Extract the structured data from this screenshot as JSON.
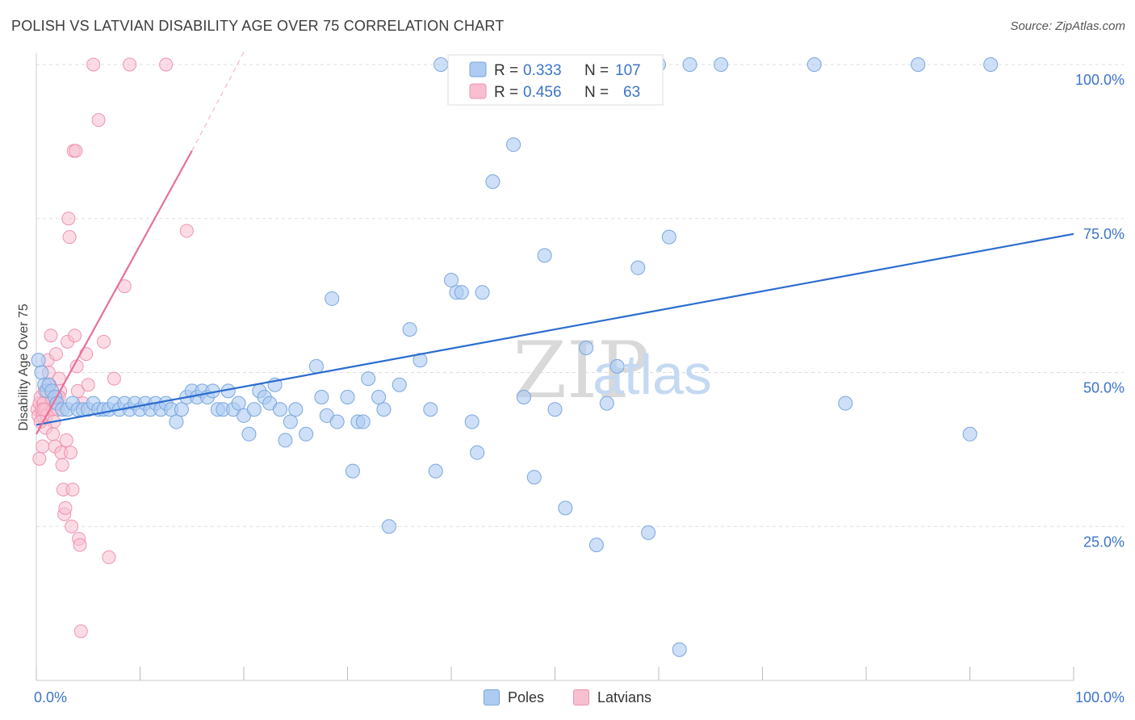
{
  "header": {
    "title": "POLISH VS LATVIAN DISABILITY AGE OVER 75 CORRELATION CHART",
    "source": "Source: ZipAtlas.com"
  },
  "watermark": {
    "zip": "ZIP",
    "atlas": "atlas"
  },
  "legend_box": {
    "poles": {
      "r_label": "R =",
      "r_value": "0.333",
      "n_label": "N =",
      "n_value": "107"
    },
    "latvians": {
      "r_label": "R =",
      "r_value": "0.456",
      "n_label": "N =",
      "n_value": "63"
    }
  },
  "legend_bottom": {
    "poles": "Poles",
    "latvians": "Latvians"
  },
  "colors": {
    "poles_fill": "#aecbf2",
    "poles_stroke": "#7aa6df",
    "poles_line": "#2a6ccf",
    "latvians_fill": "#f7bfd0",
    "latvians_stroke": "#ee93b1",
    "latvians_line": "#e8709a",
    "axis_text_blue": "#3c74c8",
    "grid": "#dddddd"
  },
  "chart_data": {
    "type": "scatter",
    "title": "POLISH VS LATVIAN DISABILITY AGE OVER 75 CORRELATION CHART",
    "xlabel": "",
    "ylabel": "Disability Age Over 75",
    "xlim": [
      0,
      100
    ],
    "ylim": [
      0,
      100
    ],
    "x_tick_labels": [
      "0.0%",
      "100.0%"
    ],
    "y_ticks": [
      25,
      50,
      75,
      100
    ],
    "y_tick_labels": [
      "25.0%",
      "50.0%",
      "75.0%",
      "100.0%"
    ],
    "grid": true,
    "series": [
      {
        "name": "Poles",
        "r": 0.333,
        "n": 107,
        "trend": {
          "x": [
            0,
            100
          ],
          "y": [
            41.5,
            72.5
          ]
        },
        "points": [
          [
            0.2,
            52
          ],
          [
            0.5,
            50
          ],
          [
            0.8,
            48
          ],
          [
            1.0,
            47
          ],
          [
            1.2,
            48
          ],
          [
            1.5,
            47
          ],
          [
            1.8,
            46
          ],
          [
            2.0,
            45
          ],
          [
            2.5,
            44
          ],
          [
            3.0,
            44
          ],
          [
            3.5,
            45
          ],
          [
            4.0,
            44
          ],
          [
            4.5,
            44
          ],
          [
            5.0,
            44
          ],
          [
            5.5,
            45
          ],
          [
            6.0,
            44
          ],
          [
            6.5,
            44
          ],
          [
            7.0,
            44
          ],
          [
            7.5,
            45
          ],
          [
            8.0,
            44
          ],
          [
            8.5,
            45
          ],
          [
            9.0,
            44
          ],
          [
            9.5,
            45
          ],
          [
            10.0,
            44
          ],
          [
            10.5,
            45
          ],
          [
            11.0,
            44
          ],
          [
            11.5,
            45
          ],
          [
            12.0,
            44
          ],
          [
            12.5,
            45
          ],
          [
            13.0,
            44
          ],
          [
            13.5,
            42
          ],
          [
            14.0,
            44
          ],
          [
            14.5,
            46
          ],
          [
            15.0,
            47
          ],
          [
            15.5,
            46
          ],
          [
            16.0,
            47
          ],
          [
            16.5,
            46
          ],
          [
            17.0,
            47
          ],
          [
            17.5,
            44
          ],
          [
            18.0,
            44
          ],
          [
            18.5,
            47
          ],
          [
            19.0,
            44
          ],
          [
            19.5,
            45
          ],
          [
            20.0,
            43
          ],
          [
            20.5,
            40
          ],
          [
            21.0,
            44
          ],
          [
            21.5,
            47
          ],
          [
            22.0,
            46
          ],
          [
            22.5,
            45
          ],
          [
            23.0,
            48
          ],
          [
            23.5,
            44
          ],
          [
            24.0,
            39
          ],
          [
            24.5,
            42
          ],
          [
            25.0,
            44
          ],
          [
            26.0,
            40
          ],
          [
            27.0,
            51
          ],
          [
            27.5,
            46
          ],
          [
            28.0,
            43
          ],
          [
            28.5,
            62
          ],
          [
            29.0,
            42
          ],
          [
            30.0,
            46
          ],
          [
            30.5,
            34
          ],
          [
            31.0,
            42
          ],
          [
            31.5,
            42
          ],
          [
            32.0,
            49
          ],
          [
            33.0,
            46
          ],
          [
            33.5,
            44
          ],
          [
            34.0,
            25
          ],
          [
            35.0,
            48
          ],
          [
            36.0,
            57
          ],
          [
            37.0,
            52
          ],
          [
            38.0,
            44
          ],
          [
            38.5,
            34
          ],
          [
            39.0,
            100
          ],
          [
            40.0,
            65
          ],
          [
            40.5,
            63
          ],
          [
            41.0,
            63
          ],
          [
            41.5,
            100
          ],
          [
            42.0,
            42
          ],
          [
            42.5,
            37
          ],
          [
            43.0,
            63
          ],
          [
            44.0,
            81
          ],
          [
            45.0,
            100
          ],
          [
            46.0,
            87
          ],
          [
            47.0,
            46
          ],
          [
            48.0,
            33
          ],
          [
            49.0,
            69
          ],
          [
            50.0,
            44
          ],
          [
            51.0,
            28
          ],
          [
            52.0,
            100
          ],
          [
            53.0,
            54
          ],
          [
            54.0,
            22
          ],
          [
            55.0,
            45
          ],
          [
            56.0,
            51
          ],
          [
            57.0,
            100
          ],
          [
            58.0,
            67
          ],
          [
            59.0,
            24
          ],
          [
            60.0,
            100
          ],
          [
            61.0,
            72
          ],
          [
            62.0,
            5
          ],
          [
            63.0,
            100
          ],
          [
            66.0,
            100
          ],
          [
            75.0,
            100
          ],
          [
            78.0,
            45
          ],
          [
            85.0,
            100
          ],
          [
            90.0,
            40
          ],
          [
            92.0,
            100
          ]
        ]
      },
      {
        "name": "Latvians",
        "r": 0.456,
        "n": 63,
        "trend": {
          "x": [
            0,
            15
          ],
          "y": [
            40,
            86
          ]
        },
        "trend_dashed": {
          "x": [
            15,
            20
          ],
          "y": [
            86,
            102
          ]
        },
        "points": [
          [
            0.1,
            44
          ],
          [
            0.2,
            43
          ],
          [
            0.3,
            45
          ],
          [
            0.4,
            46
          ],
          [
            0.5,
            44
          ],
          [
            0.6,
            43
          ],
          [
            0.7,
            45
          ],
          [
            0.8,
            47
          ],
          [
            0.9,
            44
          ],
          [
            1.0,
            43
          ],
          [
            1.1,
            52
          ],
          [
            1.2,
            50
          ],
          [
            1.3,
            48
          ],
          [
            1.4,
            56
          ],
          [
            1.5,
            46
          ],
          [
            1.6,
            44
          ],
          [
            1.7,
            42
          ],
          [
            1.8,
            38
          ],
          [
            1.9,
            53
          ],
          [
            2.0,
            46
          ],
          [
            2.1,
            44
          ],
          [
            2.2,
            49
          ],
          [
            2.3,
            47
          ],
          [
            2.4,
            37
          ],
          [
            2.5,
            35
          ],
          [
            2.6,
            31
          ],
          [
            2.7,
            27
          ],
          [
            2.8,
            28
          ],
          [
            2.9,
            39
          ],
          [
            3.0,
            55
          ],
          [
            3.1,
            75
          ],
          [
            3.2,
            72
          ],
          [
            3.3,
            37
          ],
          [
            3.4,
            25
          ],
          [
            3.5,
            31
          ],
          [
            3.6,
            86
          ],
          [
            3.7,
            56
          ],
          [
            3.8,
            86
          ],
          [
            3.9,
            51
          ],
          [
            4.0,
            47
          ],
          [
            4.1,
            23
          ],
          [
            4.2,
            22
          ],
          [
            4.3,
            8
          ],
          [
            4.5,
            45
          ],
          [
            4.8,
            53
          ],
          [
            5.0,
            48
          ],
          [
            5.5,
            100
          ],
          [
            6.0,
            91
          ],
          [
            6.5,
            55
          ],
          [
            7.0,
            20
          ],
          [
            7.5,
            49
          ],
          [
            8.5,
            64
          ],
          [
            9.0,
            100
          ],
          [
            12.5,
            100
          ],
          [
            14.5,
            73
          ],
          [
            0.3,
            36
          ],
          [
            0.6,
            38
          ],
          [
            0.9,
            41
          ],
          [
            1.6,
            40
          ],
          [
            1.9,
            45
          ],
          [
            2.2,
            46
          ],
          [
            0.4,
            42
          ],
          [
            0.7,
            44
          ]
        ]
      }
    ]
  }
}
